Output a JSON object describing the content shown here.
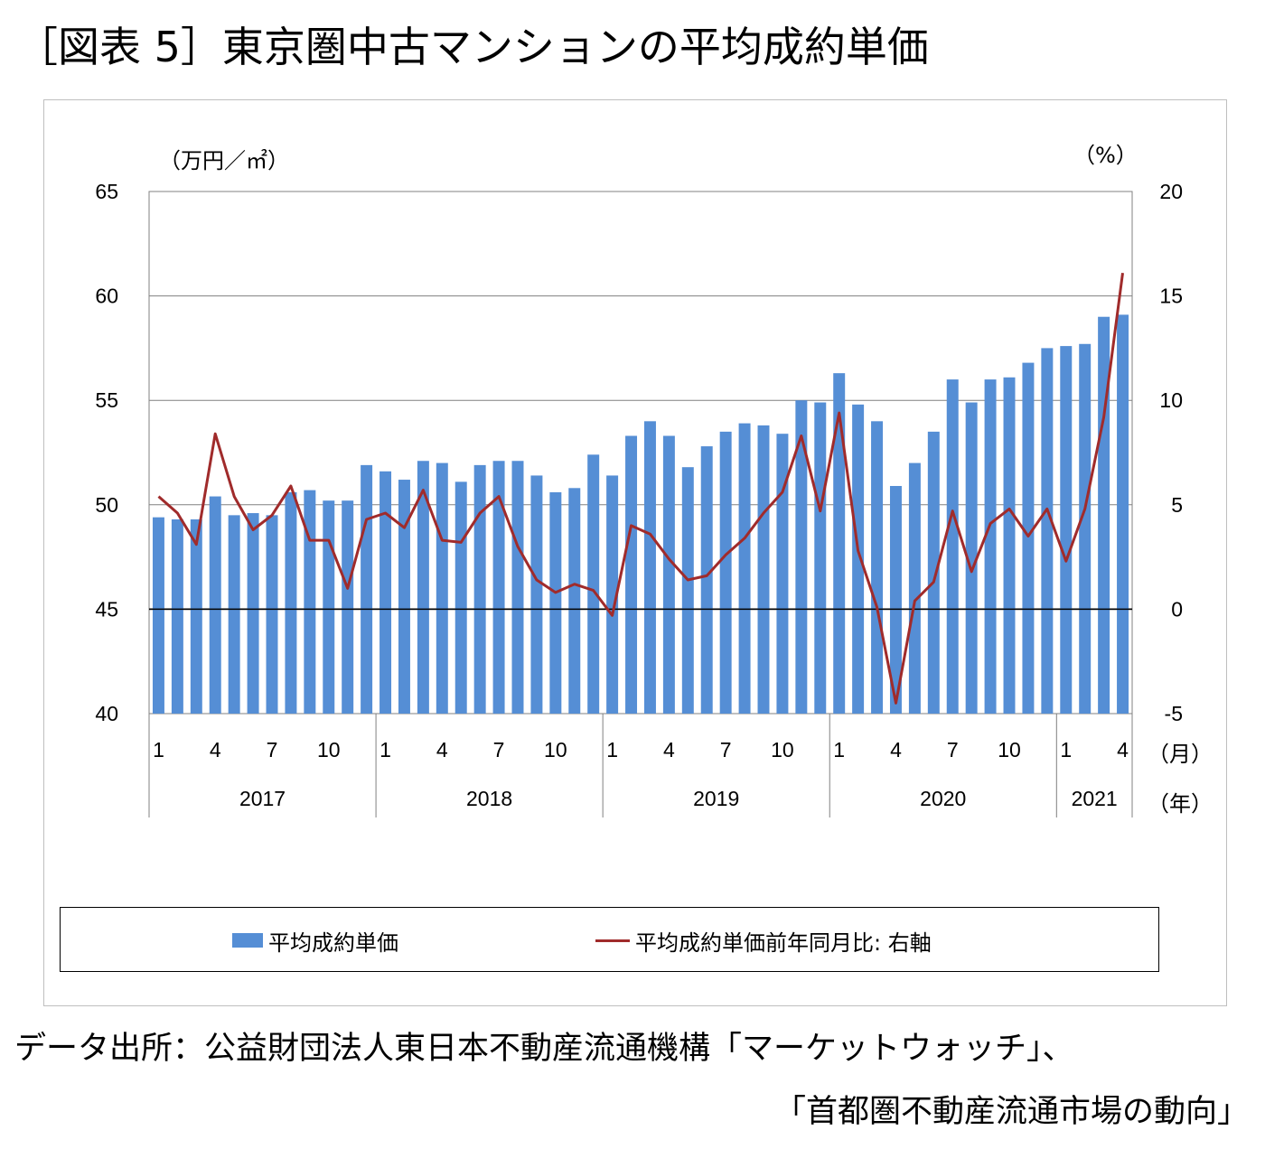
{
  "title": "［図表 5］東京圏中古マンションの平均成約単価",
  "source": {
    "line1": "データ出所：公益財団法人東日本不動産流通機構「マーケットウォッチ」、",
    "line2": "「首都圏不動産流通市場の動向」"
  },
  "colors": {
    "bar": "#558ED5",
    "line": "#A02B2B",
    "gridline": "#808080",
    "zero_line": "#000000"
  },
  "chart_data": {
    "type": "bar",
    "left_axis_unit": "（万円／㎡）",
    "right_axis_unit": "（%）",
    "month_axis_unit": "（月）",
    "year_axis_unit": "（年）",
    "ylim_left": [
      40,
      65
    ],
    "ylim_right": [
      -5,
      20
    ],
    "y_ticks_left": [
      40,
      45,
      50,
      55,
      60,
      65
    ],
    "y_ticks_right": [
      -5,
      0,
      5,
      10,
      15,
      20
    ],
    "grid": true,
    "legend_position": "bottom",
    "x_tick_labels": [
      {
        "index": 0,
        "label": "1"
      },
      {
        "index": 3,
        "label": "4"
      },
      {
        "index": 6,
        "label": "7"
      },
      {
        "index": 9,
        "label": "10"
      },
      {
        "index": 12,
        "label": "1"
      },
      {
        "index": 15,
        "label": "4"
      },
      {
        "index": 18,
        "label": "7"
      },
      {
        "index": 21,
        "label": "10"
      },
      {
        "index": 24,
        "label": "1"
      },
      {
        "index": 27,
        "label": "4"
      },
      {
        "index": 30,
        "label": "7"
      },
      {
        "index": 33,
        "label": "10"
      },
      {
        "index": 36,
        "label": "1"
      },
      {
        "index": 39,
        "label": "4"
      },
      {
        "index": 42,
        "label": "7"
      },
      {
        "index": 45,
        "label": "10"
      },
      {
        "index": 48,
        "label": "1"
      },
      {
        "index": 51,
        "label": "4"
      }
    ],
    "year_groups": [
      {
        "label": "2017",
        "start": 0,
        "end": 11
      },
      {
        "label": "2018",
        "start": 12,
        "end": 23
      },
      {
        "label": "2019",
        "start": 24,
        "end": 35
      },
      {
        "label": "2020",
        "start": 36,
        "end": 47
      },
      {
        "label": "2021",
        "start": 48,
        "end": 51
      }
    ],
    "series": [
      {
        "name": "平均成約単価",
        "kind": "bar",
        "axis": "left",
        "values": [
          49.4,
          49.3,
          49.3,
          50.4,
          49.5,
          49.6,
          49.5,
          50.6,
          50.7,
          50.2,
          50.2,
          51.9,
          51.6,
          51.2,
          52.1,
          52.0,
          51.1,
          51.9,
          52.1,
          52.1,
          51.4,
          50.6,
          50.8,
          52.4,
          51.4,
          53.3,
          54.0,
          53.3,
          51.8,
          52.8,
          53.5,
          53.9,
          53.8,
          53.4,
          55.0,
          54.9,
          56.3,
          54.8,
          54.0,
          50.9,
          52.0,
          53.5,
          56.0,
          54.9,
          56.0,
          56.1,
          56.8,
          57.5,
          57.6,
          57.7,
          59.0,
          59.1
        ]
      },
      {
        "name": "平均成約単価前年同月比: 右軸",
        "kind": "line",
        "axis": "right",
        "values": [
          5.4,
          4.6,
          3.1,
          8.4,
          5.4,
          3.8,
          4.5,
          5.9,
          3.3,
          3.3,
          1.0,
          4.3,
          4.6,
          3.9,
          5.7,
          3.3,
          3.2,
          4.6,
          5.4,
          3.0,
          1.4,
          0.8,
          1.2,
          0.9,
          -0.3,
          4.0,
          3.6,
          2.4,
          1.4,
          1.6,
          2.6,
          3.4,
          4.6,
          5.6,
          8.3,
          4.7,
          9.4,
          2.8,
          0.1,
          -4.5,
          0.4,
          1.3,
          4.7,
          1.8,
          4.1,
          4.8,
          3.5,
          4.8,
          2.3,
          4.8,
          9.2,
          16.1
        ]
      }
    ]
  }
}
